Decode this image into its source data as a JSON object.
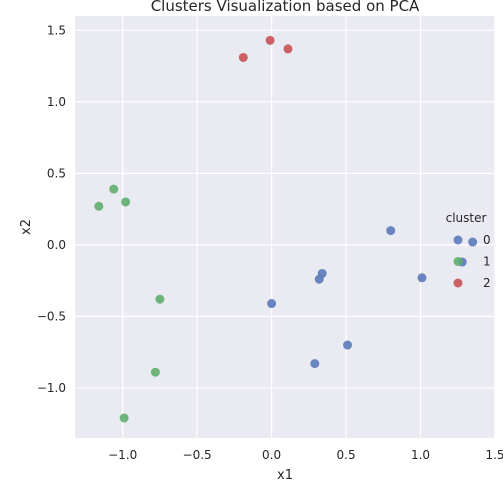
{
  "chart_data": {
    "type": "scatter",
    "title": "Clusters Visualization based on PCA",
    "xlabel": "x1",
    "ylabel": "x2",
    "xlim": [
      -1.32,
      1.5
    ],
    "ylim": [
      -1.35,
      1.6
    ],
    "grid": true,
    "x_ticks": [
      -1.0,
      -0.5,
      0.0,
      0.5,
      1.0,
      1.5
    ],
    "x_tick_labels": [
      "−1.0",
      "−0.5",
      "0.0",
      "0.5",
      "1.0",
      "1.5"
    ],
    "y_ticks": [
      -1.0,
      -0.5,
      0.0,
      0.5,
      1.0,
      1.5
    ],
    "y_tick_labels": [
      "−1.0",
      "−0.5",
      "0.0",
      "0.5",
      "1.0",
      "1.5"
    ],
    "legend": {
      "title": "cluster",
      "placement": "center-right",
      "entries": [
        {
          "label": "0",
          "color": "#5a7ab9"
        },
        {
          "label": "1",
          "color": "#5fae6e"
        },
        {
          "label": "2",
          "color": "#c95255"
        }
      ]
    },
    "series": [
      {
        "name": "0",
        "color": "#5a7ab9",
        "points": [
          [
            0.8,
            0.1
          ],
          [
            1.35,
            0.02
          ],
          [
            1.28,
            -0.12
          ],
          [
            1.01,
            -0.23
          ],
          [
            0.34,
            -0.2
          ],
          [
            0.32,
            -0.24
          ],
          [
            0.0,
            -0.41
          ],
          [
            0.51,
            -0.7
          ],
          [
            0.29,
            -0.83
          ]
        ]
      },
      {
        "name": "1",
        "color": "#5fae6e",
        "points": [
          [
            -1.06,
            0.39
          ],
          [
            -0.98,
            0.3
          ],
          [
            -1.16,
            0.27
          ],
          [
            -0.75,
            -0.38
          ],
          [
            -0.78,
            -0.89
          ],
          [
            -0.99,
            -1.21
          ]
        ]
      },
      {
        "name": "2",
        "color": "#c95255",
        "points": [
          [
            -0.01,
            1.43
          ],
          [
            0.11,
            1.37
          ],
          [
            -0.19,
            1.31
          ]
        ]
      }
    ]
  }
}
